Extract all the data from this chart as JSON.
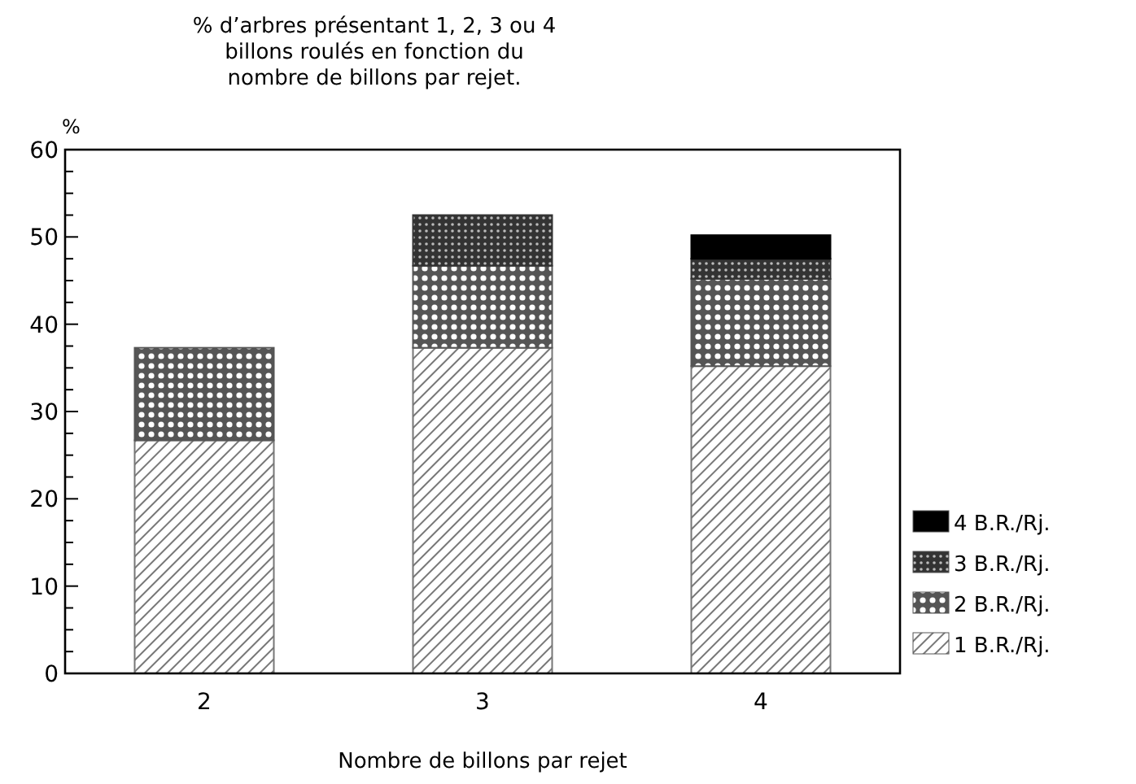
{
  "chart_data": {
    "type": "bar",
    "stacked": true,
    "title": "% d’arbres présentant 1, 2, 3 ou 4\nbillons roulés en fonction du\nnombre de billons par rejet.",
    "xlabel": "Nombre de billons par rejet",
    "ylabel": "%",
    "categories": [
      "2",
      "3",
      "4"
    ],
    "series": [
      {
        "name": "1 B.R./Rj.",
        "color": "#777777",
        "values": [
          26.7,
          37.3,
          35.2
        ]
      },
      {
        "name": "2 B.R./Rj.",
        "color": "#555555",
        "values": [
          10.6,
          9.4,
          10
        ]
      },
      {
        "name": "3 B.R./Rj.",
        "color": "#333333",
        "values": [
          null,
          5.8,
          2.3
        ]
      },
      {
        "name": "4 B.R./Rj.",
        "color": "#000000",
        "values": [
          null,
          null,
          2.7
        ]
      }
    ],
    "ylim": [
      0,
      60
    ],
    "yticks": [
      0,
      {
        "value": 2.5,
        "label": null
      },
      {
        "value": 5,
        "label": null
      },
      {
        "value": 7.5,
        "label": null
      },
      10,
      {
        "value": 12.5,
        "label": null
      },
      {
        "value": 15,
        "label": null
      },
      {
        "value": 17.5,
        "label": null
      },
      20,
      {
        "value": 22.5,
        "label": null
      },
      {
        "value": 25,
        "label": null
      },
      {
        "value": 27.5,
        "label": null
      },
      30,
      {
        "value": 32.5,
        "label": null
      },
      {
        "value": 35,
        "label": null
      },
      {
        "value": 37.5,
        "label": null
      },
      40,
      {
        "value": 42.5,
        "label": null
      },
      {
        "value": 45,
        "label": null
      },
      {
        "value": 47.5,
        "label": null
      },
      50,
      {
        "value": 52.5,
        "label": null
      },
      {
        "value": 55,
        "label": null
      },
      {
        "value": 57.5,
        "label": null
      },
      60
    ],
    "grid": false,
    "legend": "bottom right"
  }
}
